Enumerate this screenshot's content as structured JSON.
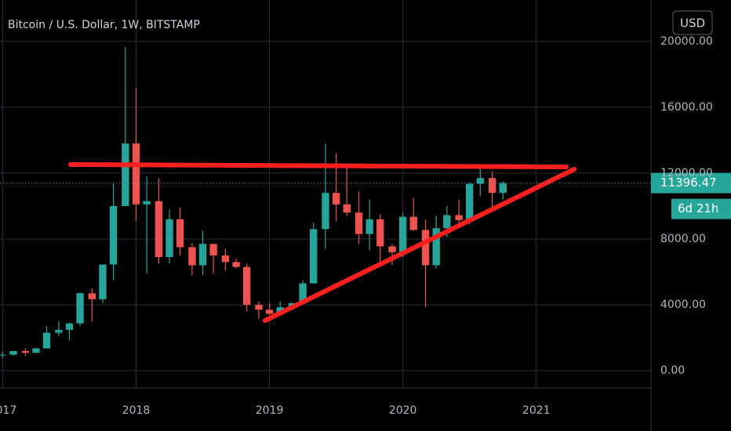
{
  "chart_data": {
    "type": "candlestick",
    "title": "Bitcoin / U.S. Dollar, 1W, BITSTAMP",
    "currency": "USD",
    "countdown": "6d 21h",
    "up_color": "#26a69a",
    "down_color": "#ef5350",
    "x": [
      2017.0,
      2017.08,
      2017.17,
      2017.25,
      2017.33,
      2017.42,
      2017.5,
      2017.58,
      2017.67,
      2017.75,
      2017.83,
      2017.92,
      2018.0,
      2018.08,
      2018.17,
      2018.25,
      2018.33,
      2018.42,
      2018.5,
      2018.58,
      2018.67,
      2018.75,
      2018.83,
      2018.92,
      2019.0,
      2019.08,
      2019.17,
      2019.25,
      2019.33,
      2019.42,
      2019.5,
      2019.58,
      2019.67,
      2019.75,
      2019.83,
      2019.92,
      2020.0,
      2020.08,
      2020.17,
      2020.25,
      2020.33,
      2020.42,
      2020.5,
      2020.58,
      2020.67,
      2020.75
    ],
    "open": [
      960,
      970,
      1190,
      1080,
      1350,
      2300,
      2480,
      2870,
      4700,
      4340,
      6450,
      10000,
      13800,
      10100,
      10300,
      6900,
      9200,
      7500,
      6400,
      7700,
      7000,
      6600,
      6300,
      4000,
      3700,
      3450,
      3850,
      4100,
      5300,
      8600,
      10800,
      10100,
      9600,
      8300,
      9200,
      7550,
      7200,
      9350,
      8550,
      6400,
      8650,
      9450,
      9150,
      11350,
      11700,
      10800
    ],
    "high": [
      1150,
      1200,
      1350,
      1400,
      2700,
      3000,
      2900,
      4750,
      5000,
      6450,
      11400,
      19660,
      17200,
      11800,
      11700,
      9800,
      9900,
      7750,
      8500,
      7700,
      7400,
      6800,
      6500,
      4200,
      4100,
      4200,
      4100,
      5500,
      9000,
      13800,
      13200,
      12300,
      10900,
      10400,
      9500,
      7700,
      9600,
      10500,
      9200,
      9400,
      10000,
      10400,
      11400,
      12480,
      12100,
      11500
    ],
    "low": [
      750,
      920,
      890,
      1070,
      1350,
      2100,
      1830,
      2700,
      2970,
      4100,
      5500,
      10000,
      9100,
      5900,
      6500,
      6500,
      7000,
      5800,
      5800,
      5900,
      6100,
      6200,
      3600,
      3150,
      3400,
      3350,
      3800,
      4100,
      5300,
      7400,
      9100,
      9400,
      7700,
      7300,
      6500,
      6400,
      6900,
      8500,
      3850,
      6200,
      8100,
      8900,
      8900,
      10600,
      9900,
      10400
    ],
    "close": [
      970,
      1190,
      1080,
      1350,
      2300,
      2480,
      2870,
      4700,
      4340,
      6450,
      10000,
      13800,
      10100,
      10300,
      6900,
      9200,
      7500,
      6400,
      7700,
      7000,
      6600,
      6300,
      4000,
      3700,
      3450,
      3850,
      4100,
      5300,
      8600,
      10800,
      10100,
      9600,
      8300,
      9200,
      7550,
      7200,
      9350,
      8550,
      6400,
      8650,
      9450,
      9150,
      11350,
      11700,
      10800,
      11396.47
    ],
    "xlim": [
      2016.98,
      2021.86
    ],
    "xticks": [
      2017,
      2018,
      2019,
      2020,
      2021
    ],
    "ylim": [
      -1050,
      22520
    ],
    "yticks": [
      {
        "value": 0,
        "label": "0.00"
      },
      {
        "value": 4000,
        "label": "4000.00"
      },
      {
        "value": 8000,
        "label": "8000.00"
      },
      {
        "value": 12000,
        "label": "12000.00"
      },
      {
        "value": 16000,
        "label": "16000.00"
      },
      {
        "value": 20000,
        "label": "20000.00"
      }
    ],
    "grid": true
  }
}
